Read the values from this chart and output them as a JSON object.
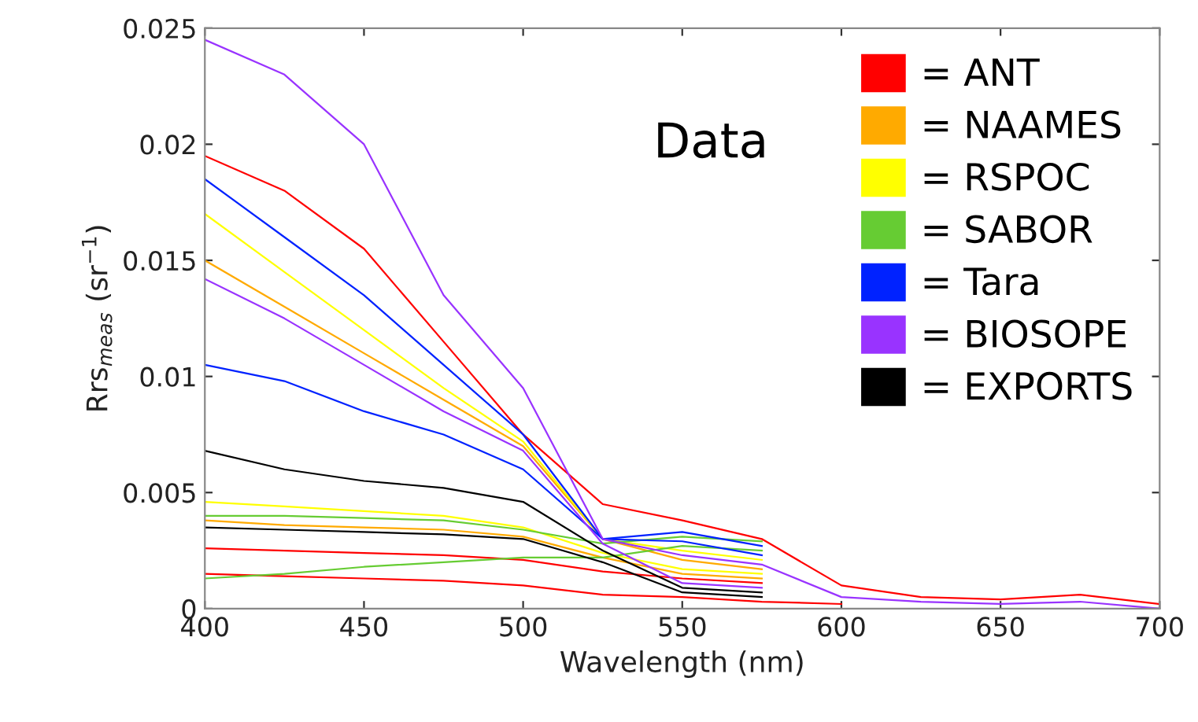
{
  "chart_data": {
    "type": "line",
    "xlabel": "Wavelength (nm)",
    "ylabel": "Rrs$_{meas}$ (sr$^{−1}$)",
    "annotations": [
      "Data"
    ],
    "x": [
      400,
      425,
      450,
      475,
      500,
      525,
      550,
      575,
      600,
      625,
      650,
      675,
      700
    ],
    "xlim": [
      400,
      700
    ],
    "xticks": [
      400,
      450,
      500,
      550,
      600,
      650,
      700
    ],
    "ylim": [
      0,
      0.025
    ],
    "yticks": [
      0,
      0.005,
      0.01,
      0.015,
      0.02,
      0.025
    ],
    "grid": false,
    "legend": "top right",
    "line_style": "solid",
    "marker": "none",
    "series": [
      {
        "name": "= ANT",
        "color": "#ff0000",
        "values": [
          0.0195,
          0.018,
          0.0155,
          0.0115,
          0.0075,
          0.0045,
          0.0038,
          0.003,
          0.001,
          0.0005,
          0.0004,
          0.0006,
          0.0002
        ]
      },
      {
        "color": "#ff0000",
        "values": [
          0.0015,
          0.0014,
          0.0013,
          0.0012,
          0.001,
          0.0006,
          0.0005,
          0.0003,
          0.0002,
          null,
          null,
          null,
          null
        ]
      },
      {
        "color": "#ff0000",
        "values": [
          0.0026,
          0.0025,
          0.0024,
          0.0023,
          0.0021,
          0.0016,
          0.0013,
          0.0011,
          null,
          null,
          null,
          null,
          null
        ]
      },
      {
        "name": "= NAAMES",
        "color": "#ffaa00",
        "values": [
          0.0038,
          0.0036,
          0.0035,
          0.0034,
          0.0031,
          0.0022,
          0.0015,
          0.0013,
          null,
          null,
          null,
          null,
          null
        ]
      },
      {
        "color": "#ffaa00",
        "values": [
          0.015,
          0.013,
          0.011,
          0.009,
          0.007,
          0.003,
          0.0021,
          0.0017,
          null,
          null,
          null,
          null,
          null
        ]
      },
      {
        "name": "= RSPOC",
        "color": "#ffff00",
        "values": [
          0.017,
          0.0145,
          0.012,
          0.0095,
          0.0072,
          0.003,
          0.0025,
          0.0021,
          null,
          null,
          null,
          null,
          null
        ]
      },
      {
        "color": "#ffff00",
        "values": [
          0.0046,
          0.0044,
          0.0042,
          0.004,
          0.0035,
          0.0024,
          0.0017,
          0.0015,
          null,
          null,
          null,
          null,
          null
        ]
      },
      {
        "name": "= SABOR",
        "color": "#66cc33",
        "values": [
          0.0013,
          0.0015,
          0.0018,
          0.002,
          0.0022,
          0.0022,
          0.0027,
          0.0025,
          null,
          null,
          null,
          null,
          null
        ]
      },
      {
        "color": "#66cc33",
        "values": [
          0.004,
          0.004,
          0.0039,
          0.0038,
          0.0034,
          0.0028,
          0.0031,
          0.0029,
          null,
          null,
          null,
          null,
          null
        ]
      },
      {
        "name": "= Tara",
        "color": "#0022ff",
        "values": [
          0.0105,
          0.0098,
          0.0085,
          0.0075,
          0.006,
          0.003,
          0.0029,
          0.0023,
          null,
          null,
          null,
          null,
          null
        ]
      },
      {
        "color": "#0022ff",
        "values": [
          0.0185,
          0.016,
          0.0135,
          0.0105,
          0.0075,
          0.003,
          0.0033,
          0.0027,
          null,
          null,
          null,
          null,
          null
        ]
      },
      {
        "name": "= BIOSOPE",
        "color": "#9933ff",
        "values": [
          0.0245,
          0.023,
          0.02,
          0.0135,
          0.0095,
          0.003,
          0.0023,
          0.0019,
          0.0005,
          0.0003,
          0.0002,
          0.0003,
          0.0
        ]
      },
      {
        "color": "#9933ff",
        "values": [
          0.0142,
          0.0125,
          0.0105,
          0.0085,
          0.0068,
          0.0028,
          0.0011,
          0.0009,
          null,
          null,
          null,
          null,
          null
        ]
      },
      {
        "name": "= EXPORTS",
        "color": "#000000",
        "values": [
          0.0068,
          0.006,
          0.0055,
          0.0052,
          0.0046,
          0.0025,
          0.0009,
          0.0007,
          null,
          null,
          null,
          null,
          null
        ]
      },
      {
        "color": "#000000",
        "values": [
          0.0035,
          0.0034,
          0.0033,
          0.0032,
          0.003,
          0.002,
          0.0007,
          0.0005,
          null,
          null,
          null,
          null,
          null
        ]
      }
    ]
  }
}
